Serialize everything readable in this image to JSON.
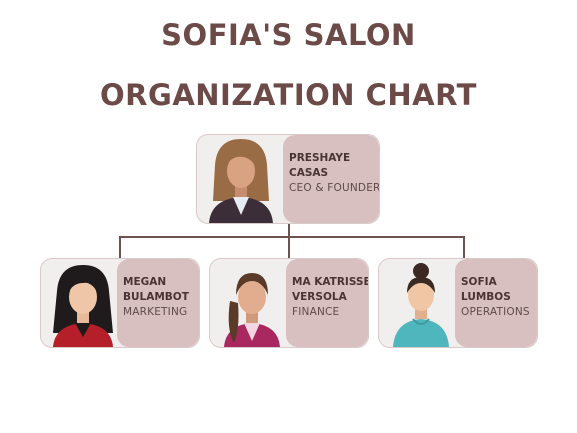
{
  "title_line1": "SOFIA'S SALON",
  "title_line2": "ORGANIZATION CHART",
  "ceo": {
    "name_line1": "PRESHAYE",
    "name_line2": "CASAS",
    "role": "CEO & FOUNDER",
    "icon": "woman-brown-hair-suit"
  },
  "staff": [
    {
      "name_line1": "MEGAN",
      "name_line2": "BULAMBOT",
      "role": "MARKETING",
      "icon": "woman-black-hair-red-jacket"
    },
    {
      "name_line1": "MA KATRISSE",
      "name_line2": "VERSOLA",
      "role": "FINANCE",
      "icon": "woman-ponytail-magenta-jacket"
    },
    {
      "name_line1": "SOFIA",
      "name_line2": "LUMBOS",
      "role": "OPERATIONS",
      "icon": "woman-bun-teal-dress"
    }
  ],
  "colors": {
    "title": "#6b4a48",
    "panel": "#d8bfc0",
    "card": "#f1efee",
    "connector": "#6e5250"
  }
}
